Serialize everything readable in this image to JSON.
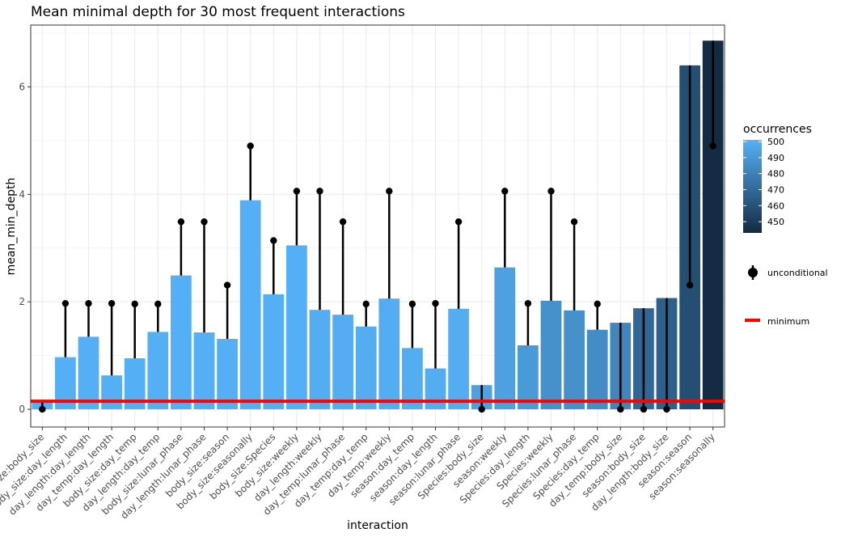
{
  "chart_data": {
    "type": "bar",
    "title": "Mean minimal depth for 30 most frequent interactions",
    "xlabel": "interaction",
    "ylabel": "mean_min_depth",
    "ylim": [
      -0.33,
      7.15
    ],
    "yticks": [
      0,
      2,
      4,
      6
    ],
    "grid": true,
    "legend_position": "right",
    "minimum_line": 0.15,
    "categories": [
      "body_size:body_size",
      "body_size:day_length",
      "day_length:day_length",
      "day_temp:day_length",
      "body_size:day_temp",
      "day_length:day_temp",
      "body_size:lunar_phase",
      "day_length:lunar_phase",
      "body_size:season",
      "body_size:seasonally",
      "body_size:Species",
      "body_size:weekly",
      "day_length:weekly",
      "day_temp:lunar_phase",
      "day_temp:day_temp",
      "day_temp:weekly",
      "season:day_temp",
      "season:day_length",
      "season:lunar_phase",
      "Species:body_size",
      "season:weekly",
      "Species:day_length",
      "Species:weekly",
      "Species:lunar_phase",
      "Species:day_temp",
      "day_temp:body_size",
      "season:body_size",
      "day_length:body_size",
      "season:season",
      "season:seasonally"
    ],
    "series": [
      {
        "name": "mean_min_depth",
        "values": [
          0.13,
          0.97,
          1.35,
          0.63,
          0.95,
          1.44,
          2.49,
          1.43,
          1.31,
          3.89,
          2.14,
          3.05,
          1.85,
          1.76,
          1.54,
          2.06,
          1.14,
          0.76,
          1.87,
          0.45,
          2.64,
          1.19,
          2.02,
          1.84,
          1.48,
          1.61,
          1.88,
          2.07,
          6.4,
          6.86
        ]
      },
      {
        "name": "unconditional",
        "values": [
          0.0,
          1.97,
          1.97,
          1.97,
          1.96,
          1.96,
          3.49,
          3.49,
          2.31,
          4.9,
          3.14,
          4.06,
          4.06,
          3.49,
          1.96,
          4.06,
          1.96,
          1.97,
          3.49,
          0.0,
          4.06,
          1.97,
          4.06,
          3.49,
          1.96,
          0.0,
          0.0,
          0.0,
          2.31,
          4.9
        ]
      },
      {
        "name": "occurrences",
        "values": [
          500,
          500,
          500,
          500,
          500,
          500,
          500,
          500,
          500,
          500,
          500,
          500,
          499,
          499,
          499,
          499,
          499,
          499,
          499,
          494,
          494,
          491,
          487,
          487,
          485,
          482,
          469,
          466,
          458,
          443
        ]
      }
    ],
    "legend": {
      "gradient_title": "occurrences",
      "gradient_ticks": [
        500,
        490,
        480,
        470,
        460,
        450
      ],
      "gradient_range": [
        443,
        501
      ],
      "color_high": "#56B1F7",
      "color_low": "#132B43",
      "point_label": "unconditional",
      "line_label": "minimum",
      "line_color": "#ff0000"
    }
  }
}
